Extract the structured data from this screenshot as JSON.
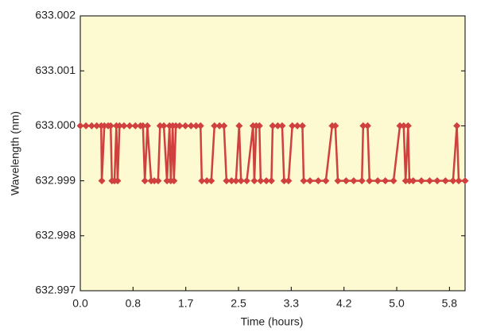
{
  "chart_data": {
    "type": "line",
    "x_label": "Time (hours)",
    "y_label": "Wavelength (nm)",
    "color": "#d0403e",
    "background": "#fdf9d0",
    "xlim": [
      0,
      6.08
    ],
    "ylim": [
      632.997,
      633.002
    ],
    "xticks": [
      {
        "value": 0,
        "label": "0.0"
      },
      {
        "value": 0.833,
        "label": "0.8"
      },
      {
        "value": 1.667,
        "label": "1.7"
      },
      2.5,
      {
        "value": 3.333,
        "label": "3.3"
      },
      {
        "value": 4.167,
        "label": "4.2"
      },
      {
        "value": 5,
        "label": "5.0"
      },
      {
        "value": 5.833,
        "label": "5.8"
      }
    ],
    "yticks": [
      632.997,
      632.998,
      632.999,
      {
        "value": 633,
        "label": "633.000"
      },
      633.001,
      633.002
    ],
    "x": [
      0,
      0.09,
      0.18,
      0.26,
      0.33,
      0.34,
      0.38,
      0.44,
      0.48,
      0.5,
      0.54,
      0.57,
      0.59,
      0.62,
      0.69,
      0.78,
      0.87,
      0.95,
      0.99,
      1.02,
      1.06,
      1.12,
      1.17,
      1.23,
      1.26,
      1.32,
      1.37,
      1.41,
      1.43,
      1.46,
      1.48,
      1.51,
      1.57,
      1.66,
      1.75,
      1.83,
      1.9,
      1.92,
      2.0,
      2.07,
      2.12,
      2.2,
      2.27,
      2.31,
      2.39,
      2.46,
      2.51,
      2.54,
      2.63,
      2.73,
      2.75,
      2.78,
      2.83,
      2.85,
      2.94,
      3.02,
      3.04,
      3.12,
      3.19,
      3.22,
      3.29,
      3.35,
      3.43,
      3.51,
      3.53,
      3.63,
      3.76,
      3.88,
      3.98,
      4.03,
      4.07,
      4.2,
      4.32,
      4.45,
      4.47,
      4.54,
      4.57,
      4.7,
      4.82,
      4.95,
      5.05,
      5.11,
      5.14,
      5.18,
      5.2,
      5.26,
      5.39,
      5.52,
      5.64,
      5.77,
      5.89,
      5.95,
      5.98,
      6.08
    ],
    "values": [
      633,
      633,
      633,
      633,
      633,
      632.999,
      633,
      633,
      633,
      632.999,
      632.999,
      633,
      632.999,
      633,
      633,
      633,
      633,
      633,
      633,
      632.999,
      633,
      632.999,
      632.999,
      632.999,
      633,
      633,
      632.999,
      633,
      632.999,
      633,
      632.999,
      633,
      633,
      633,
      633,
      633,
      633,
      632.999,
      632.999,
      632.999,
      633,
      633,
      633,
      632.999,
      632.999,
      632.999,
      633,
      632.999,
      632.999,
      633,
      632.999,
      633,
      633,
      632.999,
      632.999,
      632.999,
      633,
      633,
      633,
      632.999,
      632.999,
      633,
      633,
      633,
      632.999,
      632.999,
      632.999,
      632.999,
      633,
      633,
      632.999,
      632.999,
      632.999,
      632.999,
      633,
      633,
      632.999,
      632.999,
      632.999,
      632.999,
      633,
      633,
      632.999,
      633,
      632.999,
      632.999,
      632.999,
      632.999,
      632.999,
      632.999,
      632.999,
      633,
      632.999,
      632.999
    ]
  }
}
